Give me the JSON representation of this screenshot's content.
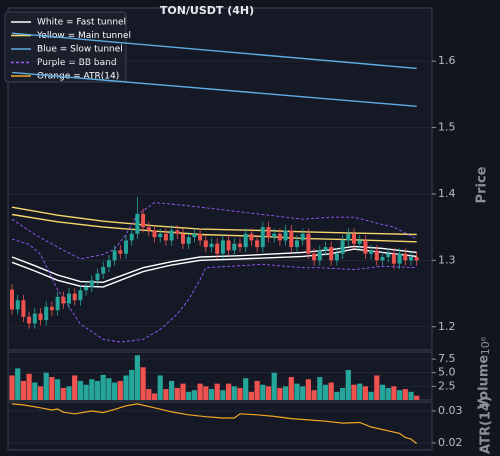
{
  "chart_data": [
    {
      "type": "candlestick",
      "title": "TON/USDT (4H)",
      "ylabel": "Price",
      "ylim": [
        1.165,
        1.68
      ],
      "yticks": [
        1.2,
        1.3,
        1.4,
        1.5,
        1.6
      ],
      "grid": true,
      "up_color": "#26a69a",
      "down_color": "#ef5350",
      "open": [
        1.256,
        1.226,
        1.24,
        1.215,
        1.205,
        1.22,
        1.21,
        1.23,
        1.225,
        1.245,
        1.235,
        1.25,
        1.24,
        1.255,
        1.26,
        1.27,
        1.28,
        1.29,
        1.3,
        1.315,
        1.31,
        1.33,
        1.34,
        1.37,
        1.35,
        1.345,
        1.335,
        1.34,
        1.33,
        1.345,
        1.34,
        1.325,
        1.335,
        1.34,
        1.33,
        1.32,
        1.325,
        1.31,
        1.33,
        1.315,
        1.325,
        1.32,
        1.34,
        1.33,
        1.32,
        1.35,
        1.335,
        1.34,
        1.33,
        1.345,
        1.32,
        1.33,
        1.34,
        1.31,
        1.3,
        1.315,
        1.32,
        1.3,
        1.31,
        1.33,
        1.34,
        1.325,
        1.33,
        1.31,
        1.315,
        1.3,
        1.305,
        1.31,
        1.295,
        1.31,
        1.3,
        1.305
      ],
      "high": [
        1.264,
        1.248,
        1.248,
        1.223,
        1.228,
        1.228,
        1.238,
        1.238,
        1.253,
        1.253,
        1.258,
        1.258,
        1.263,
        1.268,
        1.278,
        1.288,
        1.298,
        1.308,
        1.323,
        1.323,
        1.338,
        1.348,
        1.395,
        1.378,
        1.358,
        1.353,
        1.348,
        1.348,
        1.353,
        1.353,
        1.348,
        1.343,
        1.348,
        1.348,
        1.338,
        1.333,
        1.333,
        1.338,
        1.338,
        1.333,
        1.333,
        1.348,
        1.348,
        1.338,
        1.358,
        1.358,
        1.348,
        1.348,
        1.353,
        1.353,
        1.338,
        1.348,
        1.348,
        1.318,
        1.323,
        1.328,
        1.328,
        1.318,
        1.338,
        1.348,
        1.348,
        1.338,
        1.338,
        1.323,
        1.323,
        1.313,
        1.318,
        1.318,
        1.318,
        1.318,
        1.313,
        1.313
      ],
      "low": [
        1.218,
        1.218,
        1.207,
        1.197,
        1.197,
        1.202,
        1.202,
        1.217,
        1.217,
        1.227,
        1.227,
        1.232,
        1.232,
        1.247,
        1.252,
        1.262,
        1.272,
        1.282,
        1.292,
        1.302,
        1.302,
        1.322,
        1.332,
        1.342,
        1.337,
        1.327,
        1.327,
        1.322,
        1.322,
        1.332,
        1.317,
        1.317,
        1.327,
        1.322,
        1.312,
        1.312,
        1.302,
        1.302,
        1.307,
        1.307,
        1.312,
        1.312,
        1.322,
        1.312,
        1.312,
        1.327,
        1.327,
        1.322,
        1.322,
        1.312,
        1.312,
        1.322,
        1.302,
        1.292,
        1.292,
        1.307,
        1.292,
        1.292,
        1.302,
        1.322,
        1.317,
        1.317,
        1.302,
        1.302,
        1.292,
        1.292,
        1.297,
        1.287,
        1.287,
        1.292,
        1.292,
        1.292
      ],
      "close": [
        1.226,
        1.24,
        1.215,
        1.205,
        1.22,
        1.21,
        1.23,
        1.225,
        1.245,
        1.235,
        1.25,
        1.24,
        1.255,
        1.26,
        1.27,
        1.28,
        1.29,
        1.3,
        1.315,
        1.31,
        1.33,
        1.34,
        1.37,
        1.35,
        1.345,
        1.335,
        1.34,
        1.33,
        1.345,
        1.34,
        1.325,
        1.335,
        1.34,
        1.33,
        1.32,
        1.325,
        1.31,
        1.33,
        1.315,
        1.325,
        1.32,
        1.34,
        1.33,
        1.32,
        1.35,
        1.335,
        1.34,
        1.33,
        1.345,
        1.32,
        1.33,
        1.34,
        1.31,
        1.3,
        1.315,
        1.32,
        1.3,
        1.31,
        1.33,
        1.34,
        1.325,
        1.33,
        1.31,
        1.315,
        1.3,
        1.305,
        1.31,
        1.295,
        1.31,
        1.3,
        1.305,
        1.3
      ],
      "lines": [
        {
          "name": "White = Fast tunnel",
          "color": "#ffffff",
          "dashed": false,
          "paths": [
            {
              "x": [
                0,
                4,
                8,
                12,
                16,
                23,
                28,
                33,
                40,
                51,
                56,
                60,
                65,
                71
              ],
              "values": [
                1.305,
                1.292,
                1.278,
                1.268,
                1.267,
                1.289,
                1.298,
                1.305,
                1.307,
                1.312,
                1.316,
                1.321,
                1.318,
                1.312
              ]
            },
            {
              "x": [
                0,
                4,
                8,
                12,
                16,
                23,
                28,
                33,
                40,
                51,
                56,
                60,
                65,
                71
              ],
              "values": [
                1.297,
                1.284,
                1.27,
                1.261,
                1.26,
                1.283,
                1.293,
                1.3,
                1.302,
                1.306,
                1.31,
                1.317,
                1.312,
                1.306
              ]
            }
          ]
        },
        {
          "name": "Yellow = Main tunnel",
          "color": "#f5d76e",
          "dashed": false,
          "paths": [
            {
              "x": [
                0,
                8,
                16,
                25,
                33,
                44,
                51,
                60,
                71
              ],
              "values": [
                1.38,
                1.368,
                1.359,
                1.352,
                1.347,
                1.345,
                1.343,
                1.341,
                1.339
              ]
            },
            {
              "x": [
                0,
                8,
                16,
                25,
                33,
                44,
                51,
                60,
                71
              ],
              "values": [
                1.369,
                1.358,
                1.35,
                1.344,
                1.339,
                1.336,
                1.333,
                1.331,
                1.328
              ]
            }
          ]
        },
        {
          "name": "Blue = Slow tunnel",
          "color": "#5dade2",
          "dashed": false,
          "paths": [
            {
              "x": [
                0,
                71
              ],
              "values": [
                1.642,
                1.589
              ]
            },
            {
              "x": [
                0,
                71
              ],
              "values": [
                1.583,
                1.532
              ]
            }
          ]
        },
        {
          "name": "Purple = BB band",
          "color": "#9b59ff",
          "dashed": true,
          "paths": [
            {
              "x": [
                0,
                4,
                8,
                12,
                16,
                18,
                20,
                22,
                25,
                29,
                33,
                44,
                51,
                56,
                60,
                65,
                67,
                71
              ],
              "values": [
                1.362,
                1.339,
                1.32,
                1.302,
                1.309,
                1.317,
                1.339,
                1.369,
                1.387,
                1.384,
                1.38,
                1.369,
                1.362,
                1.365,
                1.365,
                1.354,
                1.35,
                1.332
              ]
            },
            {
              "x": [
                0,
                3,
                5,
                8,
                12,
                16,
                19,
                23,
                26,
                29,
                31,
                33,
                34,
                40,
                44,
                51,
                54,
                60,
                65,
                71
              ],
              "values": [
                1.332,
                1.324,
                1.309,
                1.256,
                1.204,
                1.181,
                1.177,
                1.181,
                1.196,
                1.219,
                1.241,
                1.271,
                1.289,
                1.292,
                1.294,
                1.289,
                1.289,
                1.286,
                1.291,
                1.289
              ]
            }
          ]
        }
      ]
    },
    {
      "type": "bar",
      "ylabel": "Volume",
      "scale_label": "10⁶",
      "ylim": [
        0,
        8.8
      ],
      "yticks": [
        2.5,
        {
          "value": 5,
          "label": "5.0"
        },
        7.5
      ],
      "grid": true,
      "values": [
        4.5,
        5.8,
        3.5,
        4.8,
        3.2,
        2.5,
        5,
        4.2,
        3.8,
        2.2,
        2.5,
        4.5,
        3.5,
        2.8,
        3.8,
        3.5,
        4.6,
        4,
        3.2,
        3.5,
        4.5,
        5.5,
        8.2,
        6,
        2,
        1.2,
        4.5,
        2,
        3.5,
        2.2,
        3,
        1.5,
        1.8,
        3,
        2.5,
        2,
        3,
        1.8,
        3,
        2.5,
        2.2,
        4,
        1.5,
        3.5,
        2.8,
        2.5,
        5,
        2.2,
        2.5,
        4.2,
        3,
        2.5,
        3.8,
        1.8,
        4.2,
        2.8,
        3.2,
        1.5,
        2.2,
        5.5,
        2.8,
        3,
        2.5,
        1.5,
        4.5,
        2.8,
        2.2,
        2.5,
        1.8,
        2,
        1.5,
        0.8
      ]
    },
    {
      "type": "line",
      "name": "Orange = ATR(14)",
      "ylabel": "ATR(14)",
      "color": "#f5a623",
      "ylim": [
        0.0178,
        0.0328
      ],
      "yticks": [
        0.02,
        0.03
      ],
      "grid": true,
      "x": [
        0,
        2,
        5,
        7,
        8,
        9,
        11,
        14,
        16,
        18,
        20,
        22,
        25,
        28,
        31,
        34,
        37,
        39,
        40,
        43,
        46,
        49,
        52,
        55,
        58,
        61,
        63,
        66,
        68,
        69,
        70,
        71
      ],
      "values": [
        0.0322,
        0.0319,
        0.031,
        0.0303,
        0.0306,
        0.0296,
        0.0291,
        0.03,
        0.0295,
        0.0305,
        0.0316,
        0.0322,
        0.031,
        0.0297,
        0.0288,
        0.0282,
        0.0278,
        0.0278,
        0.0291,
        0.0288,
        0.0283,
        0.0276,
        0.0272,
        0.0268,
        0.0262,
        0.0264,
        0.025,
        0.0238,
        0.023,
        0.0217,
        0.0212,
        0.0198
      ]
    }
  ]
}
